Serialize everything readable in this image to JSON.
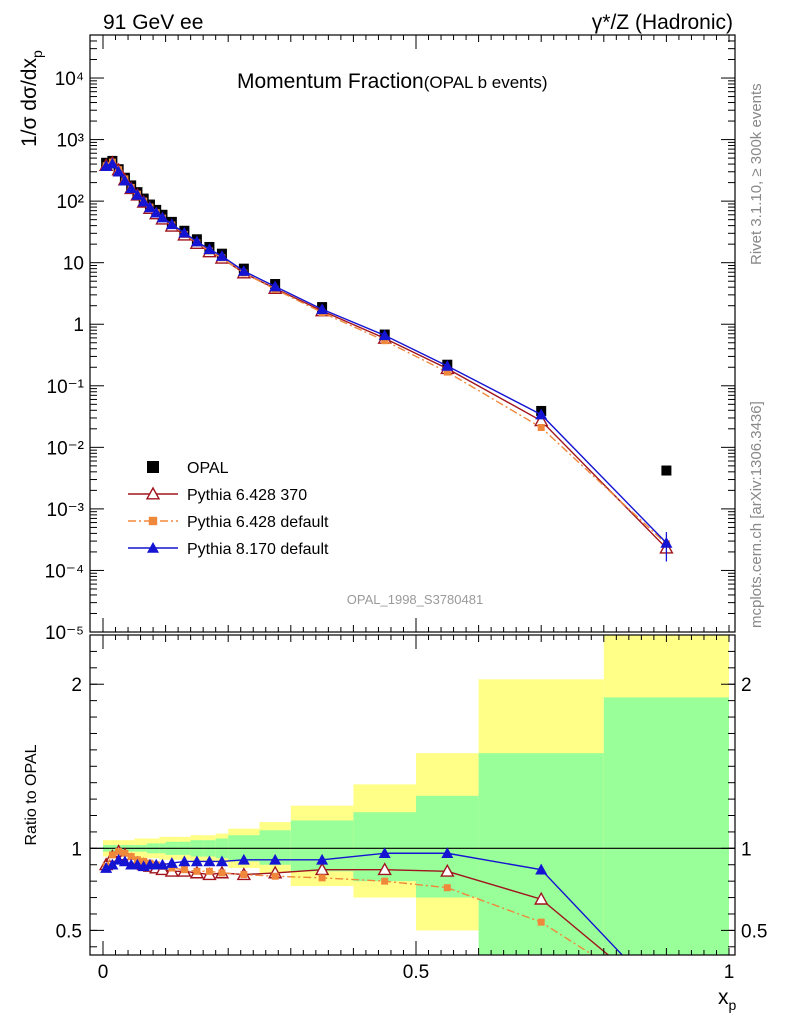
{
  "header": {
    "left": "91 GeV ee",
    "right": "γ*/Z (Hadronic)"
  },
  "side_labels": {
    "rivet": "Rivet 3.1.10, ≥ 300k events",
    "mcplots": "mcplots.cern.ch [arXiv:1306.3436]"
  },
  "chart_data": [
    {
      "id": "main",
      "type": "scatter",
      "title": "Momentum Fraction",
      "subtitle": "(OPAL b events)",
      "ylabel": "1/σ dσ/dx",
      "ylabel_sub": "p",
      "yscale": "log",
      "xlim": [
        0,
        1
      ],
      "ylim": [
        1e-05,
        50000
      ],
      "ytick_labels": [
        "10⁻⁵",
        "10⁻⁴",
        "10⁻³",
        "10⁻²",
        "10⁻¹",
        "1",
        "10",
        "10²",
        "10³",
        "10⁴"
      ],
      "watermark": "OPAL_1998_S3780481",
      "legend_position": "lower-left",
      "series": [
        {
          "name": "OPAL",
          "color": "#000000",
          "marker": "square",
          "line": "none",
          "x": [
            0.005,
            0.015,
            0.025,
            0.035,
            0.045,
            0.055,
            0.065,
            0.075,
            0.085,
            0.095,
            0.11,
            0.13,
            0.15,
            0.17,
            0.19,
            0.225,
            0.275,
            0.35,
            0.45,
            0.55,
            0.7,
            0.9
          ],
          "y": [
            420,
            450,
            330,
            240,
            180,
            140,
            110,
            88,
            72,
            60,
            46,
            33,
            24,
            18,
            14,
            8.0,
            4.5,
            1.9,
            0.68,
            0.22,
            0.039,
            0.0042
          ]
        },
        {
          "name": "Pythia 6.428 370",
          "color": "#a0141e",
          "marker": "triangle-open",
          "line": "solid",
          "x": [
            0.005,
            0.015,
            0.025,
            0.035,
            0.045,
            0.055,
            0.065,
            0.075,
            0.085,
            0.095,
            0.11,
            0.13,
            0.15,
            0.17,
            0.19,
            0.225,
            0.275,
            0.35,
            0.45,
            0.55,
            0.7,
            0.9
          ],
          "y": [
            380,
            420,
            320,
            220,
            160,
            125,
            96,
            76,
            62,
            51,
            39,
            28,
            20.5,
            15,
            11.8,
            6.8,
            3.8,
            1.65,
            0.59,
            0.19,
            0.027,
            0.00023
          ]
        },
        {
          "name": "Pythia 6.428 default",
          "color": "#f0883c",
          "marker": "square-small",
          "line": "dashdot",
          "x": [
            0.005,
            0.015,
            0.025,
            0.035,
            0.045,
            0.055,
            0.065,
            0.075,
            0.085,
            0.095,
            0.11,
            0.13,
            0.15,
            0.17,
            0.19,
            0.225,
            0.275,
            0.35,
            0.45,
            0.55,
            0.7,
            0.9
          ],
          "y": [
            375,
            430,
            325,
            230,
            167,
            130,
            100,
            80,
            65,
            53,
            41,
            28.8,
            21,
            15.5,
            12,
            6.8,
            3.7,
            1.55,
            0.54,
            0.167,
            0.021,
            0.00027
          ]
        },
        {
          "name": "Pythia 8.170 default",
          "color": "#1414d2",
          "marker": "triangle",
          "line": "solid",
          "x": [
            0.005,
            0.015,
            0.025,
            0.035,
            0.045,
            0.055,
            0.065,
            0.075,
            0.085,
            0.095,
            0.11,
            0.13,
            0.15,
            0.17,
            0.19,
            0.225,
            0.275,
            0.35,
            0.45,
            0.55,
            0.7,
            0.9
          ],
          "y": [
            370,
            405,
            300,
            215,
            162,
            126,
            98,
            79,
            65,
            54,
            42,
            30.5,
            22,
            16.5,
            12.8,
            7.3,
            4.1,
            1.75,
            0.66,
            0.21,
            0.034,
            0.00028
          ]
        }
      ]
    },
    {
      "id": "ratio",
      "type": "line",
      "ylabel": "Ratio to OPAL",
      "xlabel": "x",
      "xlabel_sub": "p",
      "xlim": [
        0,
        1
      ],
      "ylim": [
        0.35,
        2.3
      ],
      "xtick_labels": [
        "0",
        "0.5",
        "1"
      ],
      "ytick_labels": [
        "0.5",
        "1",
        "2"
      ],
      "reference_line": 1,
      "uncertainty_bands": {
        "bins": [
          0,
          0.01,
          0.02,
          0.03,
          0.04,
          0.05,
          0.06,
          0.07,
          0.08,
          0.09,
          0.1,
          0.12,
          0.14,
          0.16,
          0.18,
          0.2,
          0.25,
          0.3,
          0.4,
          0.5,
          0.6,
          0.8,
          1.0
        ],
        "inner_low": [
          0.98,
          0.98,
          0.98,
          0.98,
          0.98,
          0.98,
          0.98,
          0.97,
          0.97,
          0.97,
          0.96,
          0.96,
          0.95,
          0.95,
          0.94,
          0.92,
          0.9,
          0.86,
          0.8,
          0.7,
          0.2,
          0.2
        ],
        "inner_high": [
          1.02,
          1.02,
          1.02,
          1.02,
          1.02,
          1.02,
          1.02,
          1.03,
          1.03,
          1.03,
          1.04,
          1.04,
          1.05,
          1.05,
          1.06,
          1.08,
          1.11,
          1.17,
          1.22,
          1.32,
          1.58,
          1.92
        ],
        "outer_low": [
          0.95,
          0.95,
          0.95,
          0.95,
          0.95,
          0.94,
          0.94,
          0.94,
          0.94,
          0.93,
          0.93,
          0.93,
          0.92,
          0.92,
          0.91,
          0.88,
          0.85,
          0.77,
          0.7,
          0.5,
          0.46,
          0.2
        ],
        "outer_high": [
          1.05,
          1.05,
          1.05,
          1.05,
          1.05,
          1.06,
          1.06,
          1.06,
          1.06,
          1.07,
          1.07,
          1.07,
          1.08,
          1.08,
          1.09,
          1.12,
          1.16,
          1.26,
          1.39,
          1.58,
          2.03,
          2.3
        ]
      },
      "series": [
        {
          "name": "Pythia 6.428 370",
          "color": "#a0141e",
          "marker": "triangle-open",
          "line": "solid",
          "x": [
            0.005,
            0.015,
            0.025,
            0.035,
            0.045,
            0.055,
            0.065,
            0.075,
            0.085,
            0.095,
            0.11,
            0.13,
            0.15,
            0.17,
            0.19,
            0.225,
            0.275,
            0.35,
            0.45,
            0.55,
            0.7,
            0.9
          ],
          "y": [
            0.9,
            0.95,
            0.98,
            0.96,
            0.93,
            0.91,
            0.9,
            0.89,
            0.88,
            0.87,
            0.86,
            0.86,
            0.85,
            0.84,
            0.85,
            0.84,
            0.85,
            0.87,
            0.87,
            0.86,
            0.69,
            0.055
          ]
        },
        {
          "name": "Pythia 6.428 default",
          "color": "#f0883c",
          "marker": "square-small",
          "line": "dashdot",
          "x": [
            0.005,
            0.015,
            0.025,
            0.035,
            0.045,
            0.055,
            0.065,
            0.075,
            0.085,
            0.095,
            0.11,
            0.13,
            0.15,
            0.17,
            0.19,
            0.225,
            0.275,
            0.35,
            0.45,
            0.55,
            0.7,
            0.9
          ],
          "y": [
            0.89,
            0.96,
            0.98,
            0.97,
            0.95,
            0.93,
            0.92,
            0.91,
            0.9,
            0.89,
            0.88,
            0.87,
            0.86,
            0.86,
            0.85,
            0.84,
            0.83,
            0.82,
            0.8,
            0.76,
            0.55,
            0.064
          ]
        },
        {
          "name": "Pythia 8.170 default",
          "color": "#1414d2",
          "marker": "triangle",
          "line": "solid",
          "x": [
            0.005,
            0.015,
            0.025,
            0.035,
            0.045,
            0.055,
            0.065,
            0.075,
            0.085,
            0.095,
            0.11,
            0.13,
            0.15,
            0.17,
            0.19,
            0.225,
            0.275,
            0.35,
            0.45,
            0.55,
            0.7,
            0.9
          ],
          "y": [
            0.88,
            0.9,
            0.93,
            0.92,
            0.9,
            0.9,
            0.89,
            0.9,
            0.9,
            0.9,
            0.91,
            0.92,
            0.92,
            0.92,
            0.92,
            0.93,
            0.93,
            0.93,
            0.97,
            0.97,
            0.87,
            0.066
          ]
        }
      ]
    }
  ]
}
